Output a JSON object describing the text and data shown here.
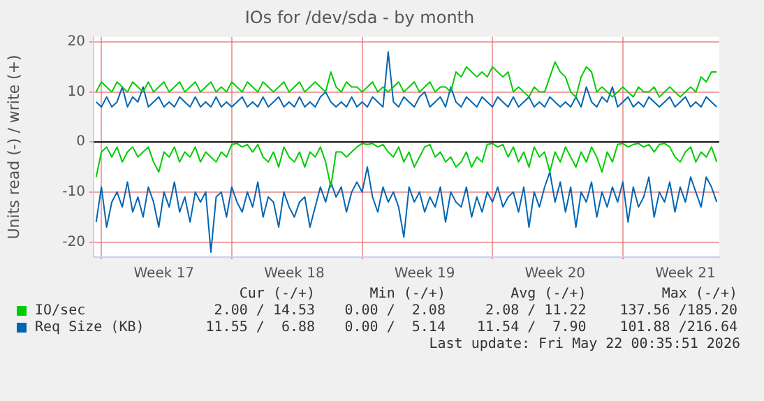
{
  "chart_data": {
    "type": "line",
    "title": "IOs for /dev/sda - by month",
    "ylabel": "Units read (-) / write (+)",
    "categories": [
      null,
      null,
      null,
      null,
      null,
      null,
      null,
      null,
      null,
      null,
      null,
      null,
      null,
      "Week 17",
      null,
      null,
      null,
      null,
      null,
      null,
      null,
      null,
      null,
      null,
      null,
      null,
      null,
      null,
      null,
      null,
      null,
      null,
      null,
      null,
      null,
      null,
      null,
      null,
      "Week 18",
      null,
      null,
      null,
      null,
      null,
      null,
      null,
      null,
      null,
      null,
      null,
      null,
      null,
      null,
      null,
      null,
      null,
      null,
      null,
      null,
      null,
      null,
      null,
      null,
      "Week 19",
      null,
      null,
      null,
      null,
      null,
      null,
      null,
      null,
      null,
      null,
      null,
      null,
      null,
      null,
      null,
      null,
      null,
      null,
      null,
      null,
      null,
      null,
      null,
      null,
      "Week 20",
      null,
      null,
      null,
      null,
      null,
      null,
      null,
      null,
      null,
      null,
      null,
      null,
      null,
      null,
      null,
      null,
      null,
      null,
      null,
      null,
      null,
      null,
      null,
      null,
      "Week 21",
      null,
      null,
      null,
      null,
      null,
      null
    ],
    "series": [
      {
        "name": "IO/sec",
        "color": "#00cc00",
        "values": [
          10,
          12,
          11,
          10,
          12,
          11,
          10,
          12,
          11,
          10,
          12,
          10,
          11,
          12,
          10,
          11,
          12,
          10,
          11,
          12,
          10,
          11,
          12,
          10,
          11,
          10,
          12,
          11,
          10,
          12,
          11,
          10,
          12,
          11,
          10,
          11,
          12,
          10,
          11,
          12,
          10,
          11,
          12,
          11,
          10,
          14,
          11,
          10,
          12,
          11,
          11,
          10,
          11,
          12,
          10,
          11,
          10,
          11,
          12,
          10,
          11,
          12,
          10,
          11,
          12,
          10,
          11,
          11,
          10,
          14,
          13,
          15,
          14,
          13,
          14,
          13,
          15,
          14,
          13,
          14,
          10,
          11,
          10,
          9,
          11,
          10,
          10,
          13,
          16,
          14,
          13,
          10,
          9,
          13,
          15,
          14,
          10,
          11,
          10,
          9,
          10,
          11,
          10,
          9,
          11,
          10,
          10,
          11,
          9,
          10,
          11,
          10,
          9,
          10,
          11,
          10,
          13,
          12,
          14,
          14
        ]
      },
      {
        "color": "#00cc00",
        "values": [
          -7,
          -2,
          -1,
          -3,
          -1,
          -4,
          -2,
          -1,
          -3,
          -2,
          -1,
          -4,
          -6,
          -2,
          -3,
          -1,
          -4,
          -2,
          -3,
          -1,
          -4,
          -2,
          -3,
          -4,
          -2,
          -3,
          -0.5,
          -0.3,
          -1,
          -0.5,
          -2,
          -0.5,
          -3,
          -4,
          -2,
          -5,
          -1,
          -3,
          -4,
          -2,
          -5,
          -2,
          -3,
          -1,
          -4,
          -9,
          -2,
          -2,
          -3,
          -2,
          -1,
          -0.3,
          -0.5,
          -0.3,
          -1,
          -0.5,
          -2,
          -3,
          -1,
          -4,
          -2,
          -5,
          -3,
          -1,
          -0.5,
          -3,
          -2,
          -4,
          -3,
          -5,
          -4,
          -2,
          -5,
          -3,
          -4,
          -0.5,
          -0.3,
          -1,
          -0.5,
          -3,
          -1,
          -4,
          -2,
          -5,
          -1,
          -3,
          -2,
          -6,
          -2,
          -4,
          -1,
          -3,
          -5,
          -2,
          -4,
          -1,
          -3,
          -6,
          -2,
          -4,
          -0.5,
          -0.3,
          -1,
          -0.5,
          -0.3,
          -1,
          -0.5,
          -2,
          -0.5,
          -0.3,
          -1,
          -3,
          -4,
          -2,
          -1,
          -4,
          -2,
          -3,
          -1,
          -4
        ]
      },
      {
        "name": "Req Size (KB)",
        "color": "#0066b3",
        "values": [
          8,
          7,
          9,
          7,
          8,
          11,
          7,
          9,
          8,
          11,
          7,
          8,
          9,
          7,
          8,
          7,
          9,
          8,
          7,
          9,
          7,
          8,
          7,
          9,
          7,
          8,
          7,
          8,
          9,
          7,
          8,
          7,
          9,
          7,
          8,
          9,
          7,
          8,
          7,
          9,
          7,
          8,
          7,
          9,
          10,
          8,
          7,
          8,
          7,
          9,
          7,
          8,
          7,
          9,
          8,
          7,
          18,
          8,
          7,
          9,
          8,
          7,
          9,
          10,
          7,
          8,
          9,
          7,
          11,
          8,
          7,
          9,
          8,
          7,
          9,
          8,
          7,
          9,
          8,
          7,
          9,
          7,
          8,
          9,
          7,
          8,
          7,
          9,
          8,
          7,
          8,
          7,
          9,
          7,
          11,
          8,
          7,
          9,
          8,
          11,
          7,
          8,
          9,
          7,
          8,
          7,
          9,
          8,
          7,
          8,
          9,
          7,
          8,
          9,
          7,
          8,
          7,
          9,
          8,
          7
        ]
      },
      {
        "color": "#0066b3",
        "values": [
          -16,
          -9,
          -17,
          -12,
          -10,
          -13,
          -8,
          -14,
          -11,
          -15,
          -9,
          -12,
          -17,
          -10,
          -13,
          -8,
          -14,
          -11,
          -16,
          -10,
          -12,
          -10,
          -22,
          -11,
          -10,
          -15,
          -9,
          -12,
          -14,
          -10,
          -13,
          -8,
          -15,
          -11,
          -12,
          -17,
          -10,
          -13,
          -15,
          -12,
          -11,
          -17,
          -13,
          -9,
          -12,
          -8,
          -11,
          -9,
          -14,
          -10,
          -8,
          -10,
          -5,
          -11,
          -14,
          -9,
          -12,
          -10,
          -13,
          -19,
          -9,
          -12,
          -10,
          -14,
          -11,
          -13,
          -9,
          -16,
          -10,
          -12,
          -13,
          -9,
          -15,
          -11,
          -14,
          -10,
          -12,
          -9,
          -13,
          -11,
          -10,
          -14,
          -9,
          -17,
          -10,
          -13,
          -9,
          -6,
          -12,
          -8,
          -14,
          -9,
          -17,
          -10,
          -12,
          -8,
          -15,
          -10,
          -13,
          -9,
          -12,
          -8,
          -16,
          -9,
          -13,
          -11,
          -7,
          -15,
          -10,
          -12,
          -8,
          -14,
          -9,
          -12,
          -7,
          -10,
          -13,
          -7,
          -9,
          -12
        ]
      }
    ],
    "ylim": [
      -23,
      21
    ],
    "yticks": [
      -20,
      -10,
      0,
      10,
      20
    ],
    "ref_lines": [
      {
        "axis": "y",
        "value": 0,
        "color": "#000000"
      }
    ],
    "grid": true,
    "marker": "none",
    "legend": "bottom",
    "annotations": [
      "Cur (-/+)",
      "Min (-/+)",
      "Avg (-/+)",
      "Max (-/+)",
      "2.00 / 14.53",
      "0.00 /  2.08",
      "2.08 / 11.22",
      "137.56 /185.20",
      "11.55 /  6.88",
      "0.00 /  5.14",
      "11.54 /  7.90",
      "101.88 /216.64",
      "Last update: Fri May 22 00:35:51 2026"
    ]
  }
}
